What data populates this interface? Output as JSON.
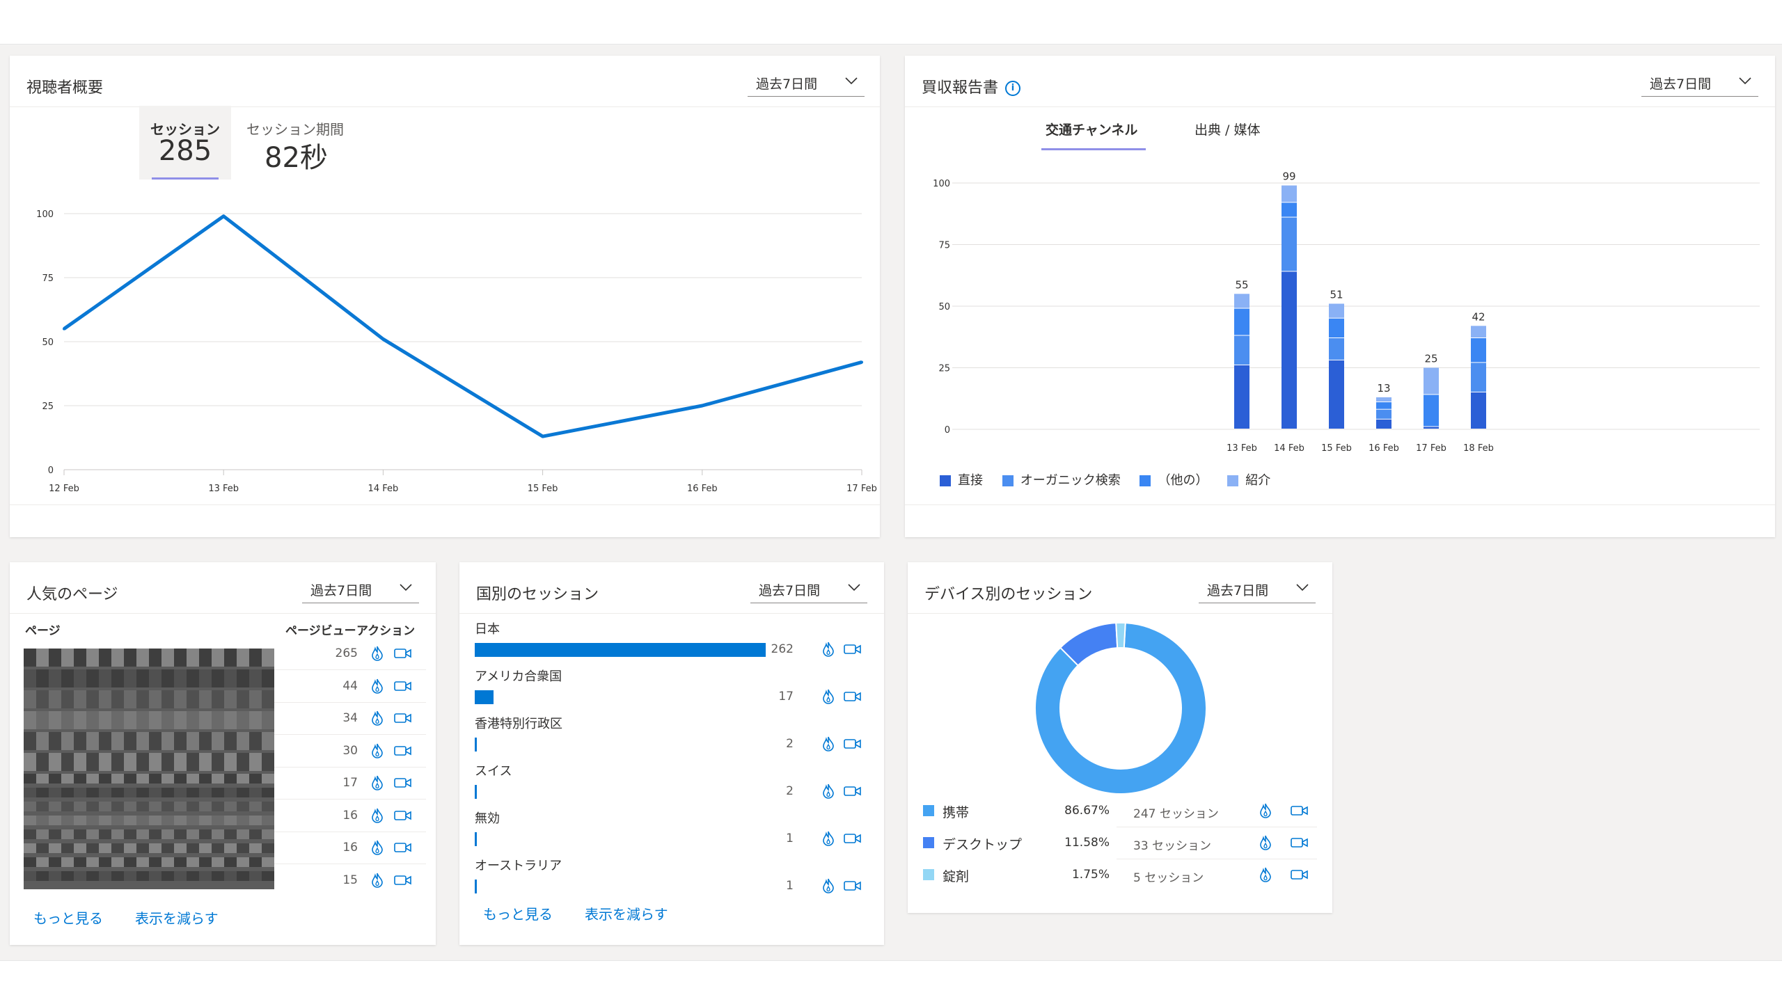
{
  "colors": {
    "accent": "#0078d4",
    "line": "#0a78d4",
    "direct": "#2b5fd6",
    "organic": "#4b8ef0",
    "other": "#3a86f3",
    "referral": "#8ab1f5",
    "mobile": "#44a3f2",
    "desktop": "#4481f3",
    "tablet": "#93d7f5"
  },
  "audience": {
    "title": "視聴者概要",
    "range": "過去7日間",
    "metric1_label": "セッション",
    "metric1_value": "285",
    "metric2_label": "セッション期間",
    "metric2_value": "82秒",
    "chart_data": {
      "type": "line",
      "x": [
        "12 Feb",
        "13 Feb",
        "14 Feb",
        "15 Feb",
        "16 Feb",
        "17 Feb"
      ],
      "values": [
        55,
        99,
        51,
        13,
        25,
        42
      ],
      "yticks": [
        "0",
        "25",
        "50",
        "75",
        "100"
      ],
      "ylim": [
        0,
        100
      ]
    }
  },
  "acquisition": {
    "title": "買収報告書",
    "info_icon": "info-icon",
    "range": "過去7日間",
    "tab1": "交通チャンネル",
    "tab2": "出典 / 媒体",
    "legend": [
      "直接",
      "オーガニック検索",
      "（他の）",
      "紹介"
    ],
    "chart_data": {
      "type": "bar",
      "stacked": true,
      "categories": [
        "13 Feb",
        "14 Feb",
        "15 Feb",
        "16 Feb",
        "17 Feb",
        "18 Feb"
      ],
      "totals": [
        "55",
        "99",
        "51",
        "13",
        "25",
        "42"
      ],
      "yticks": [
        "0",
        "25",
        "50",
        "75",
        "100"
      ],
      "ylim": [
        0,
        100
      ],
      "series": [
        {
          "name": "直接",
          "values": [
            26,
            64,
            28,
            4,
            1,
            15
          ]
        },
        {
          "name": "オーガニック検索",
          "values": [
            12,
            22,
            9,
            4,
            0,
            12
          ]
        },
        {
          "name": "（他の）",
          "values": [
            11,
            6,
            8,
            3,
            13,
            10
          ]
        },
        {
          "name": "紹介",
          "values": [
            6,
            7,
            6,
            2,
            11,
            5
          ]
        }
      ]
    }
  },
  "pages": {
    "title": "人気のページ",
    "range": "過去7日間",
    "col_page": "ページ",
    "col_views": "ページビュー",
    "col_actions": "アクション",
    "rows": [
      "265",
      "44",
      "34",
      "30",
      "17",
      "16",
      "16",
      "15"
    ],
    "more": "もっと見る",
    "less": "表示を減らす"
  },
  "countries": {
    "title": "国別のセッション",
    "range": "過去7日間",
    "rows": [
      {
        "name": "日本",
        "value": "262",
        "fraction": 1.0
      },
      {
        "name": "アメリカ合衆国",
        "value": "17",
        "fraction": 0.065
      },
      {
        "name": "香港特別行政区",
        "value": "2",
        "fraction": 0.008
      },
      {
        "name": "スイス",
        "value": "2",
        "fraction": 0.008
      },
      {
        "name": "無効",
        "value": "1",
        "fraction": 0.004
      },
      {
        "name": "オーストラリア",
        "value": "1",
        "fraction": 0.004
      }
    ],
    "more": "もっと見る",
    "less": "表示を減らす"
  },
  "devices": {
    "title": "デバイス別のセッション",
    "range": "過去7日間",
    "chart_data": {
      "type": "pie",
      "labels": [
        "携帯",
        "デスクトップ",
        "錠剤"
      ],
      "values": [
        86.67,
        11.58,
        1.75
      ]
    },
    "rows": [
      {
        "name": "携帯",
        "pct": "86.67%",
        "sessions": "247 セッション"
      },
      {
        "name": "デスクトップ",
        "pct": "11.58%",
        "sessions": "33 セッション"
      },
      {
        "name": "錠剤",
        "pct": "1.75%",
        "sessions": "5 セッション"
      }
    ]
  }
}
